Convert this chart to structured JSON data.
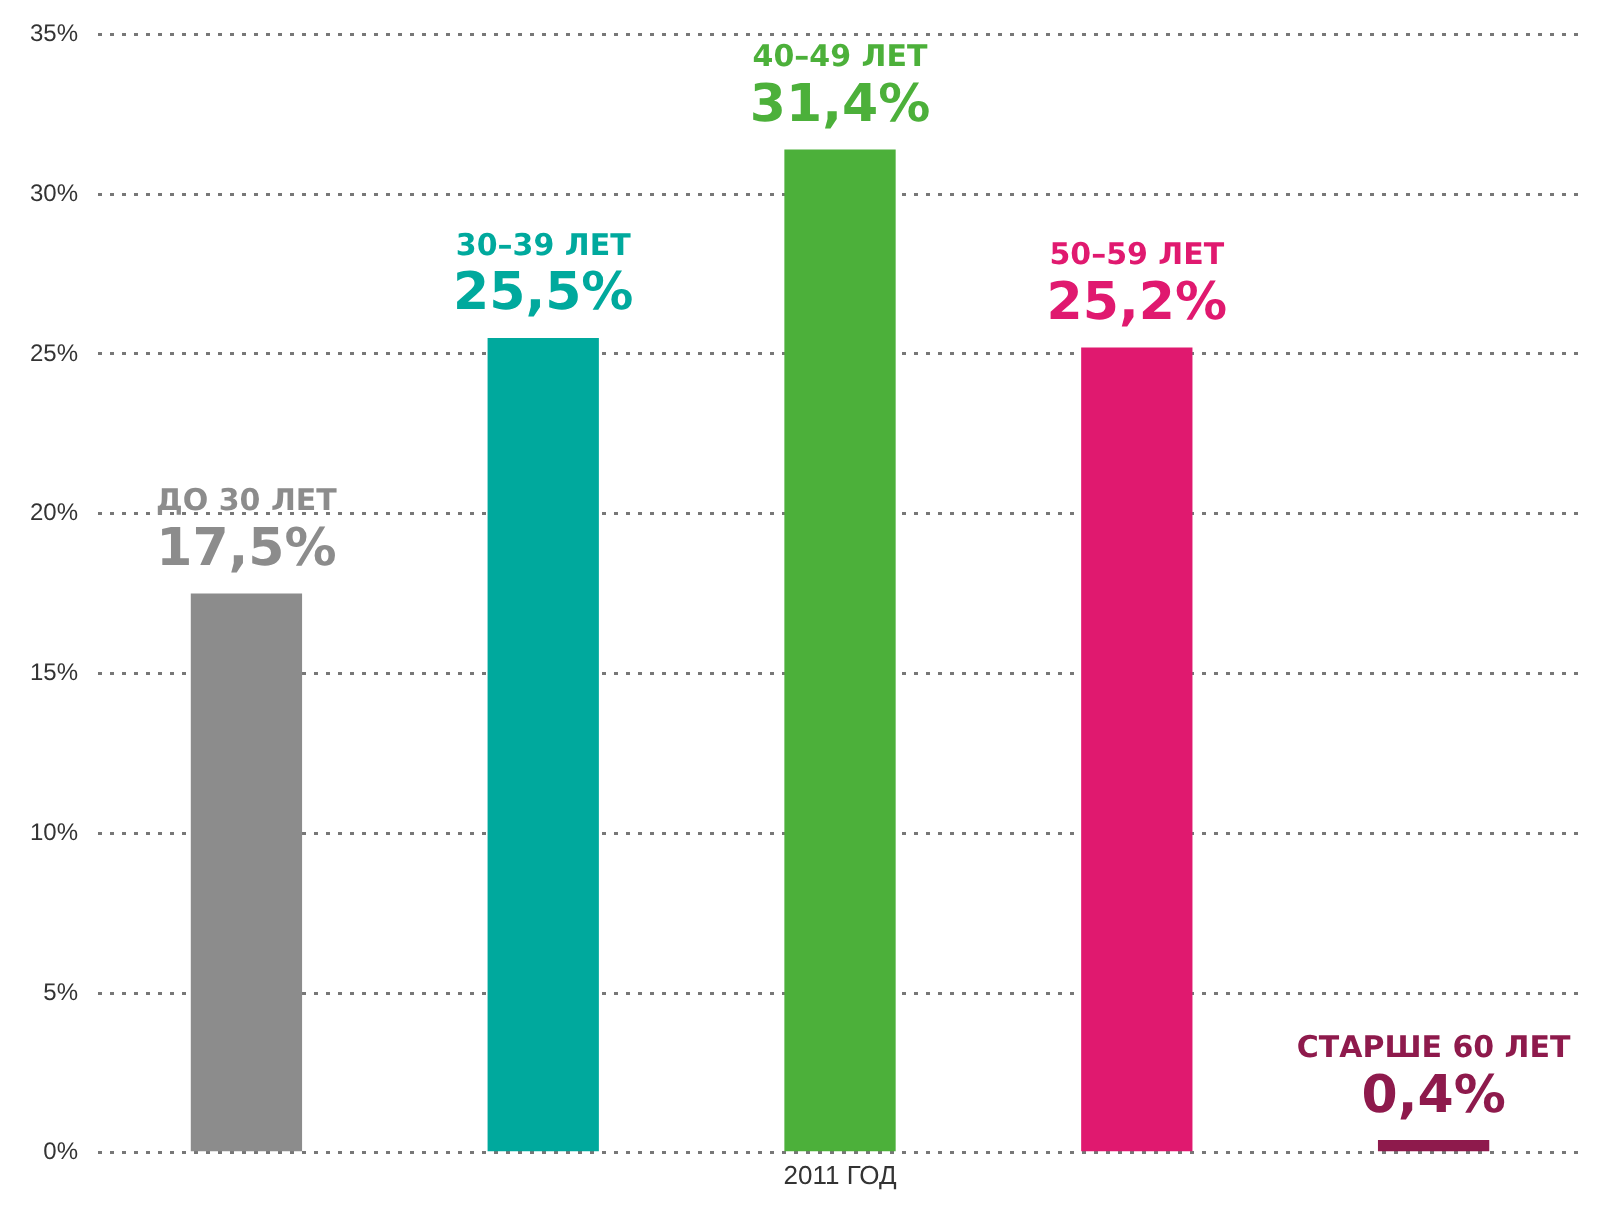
{
  "chart_data": {
    "type": "bar",
    "xlabel": "2011 ГОД",
    "categories": [
      "ДО 30 ЛЕТ",
      "30–39 ЛЕТ",
      "40–49 ЛЕТ",
      "50–59 ЛЕТ",
      "СТАРШЕ 60 ЛЕТ"
    ],
    "values": [
      17.5,
      25.5,
      31.4,
      25.2,
      0.4
    ],
    "value_labels": [
      "17,5%",
      "25,5%",
      "31,4%",
      "25,2%",
      "0,4%"
    ],
    "colors": [
      "#8c8c8c",
      "#00a99d",
      "#4cb03a",
      "#e0196f",
      "#8e1a4c"
    ],
    "ylim": [
      0,
      35
    ],
    "yticks": [
      {
        "value": 0,
        "label": "0%"
      },
      {
        "value": 5,
        "label": "5%"
      },
      {
        "value": 10,
        "label": "10%"
      },
      {
        "value": 15,
        "label": "15%"
      },
      {
        "value": 20,
        "label": "20%"
      },
      {
        "value": 25,
        "label": "25%"
      },
      {
        "value": 30,
        "label": "30%"
      },
      {
        "value": 35,
        "label": "35%"
      }
    ],
    "grid": "y",
    "legend": false,
    "tick_labels": "y"
  }
}
